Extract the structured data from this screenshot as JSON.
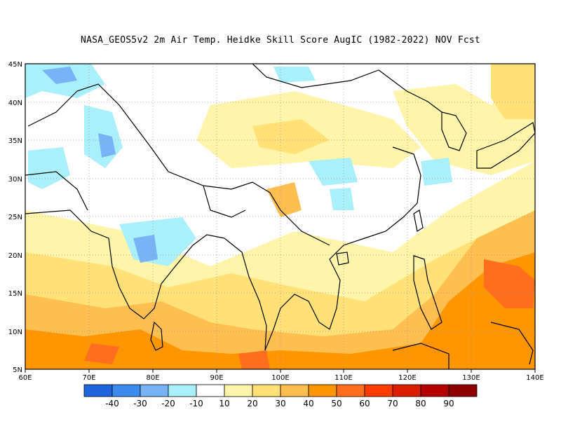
{
  "title": "NASA_GEOS5v2  2m Air Temp. Heidke Skill Score AugIC (1982-2022) NOV Fcst",
  "map": {
    "lon_range": [
      60,
      140
    ],
    "lat_range": [
      5,
      45
    ],
    "lon_labels": [
      "60E",
      "70E",
      "80E",
      "90E",
      "100E",
      "110E",
      "120E",
      "130E",
      "140E"
    ],
    "lat_labels": [
      "5N",
      "10N",
      "15N",
      "20N",
      "25N",
      "30N",
      "35N",
      "40N",
      "45N"
    ],
    "grid": "dotted"
  },
  "colorbar": {
    "colors": [
      "#1e64dc",
      "#3c8cf0",
      "#78b4f5",
      "#aaf0fa",
      "#ffffff",
      "#fff5aa",
      "#ffe178",
      "#ffbe50",
      "#ff9600",
      "#ff6e1e",
      "#ff3c00",
      "#dc1e00",
      "#b40000",
      "#8c0000"
    ],
    "labels": [
      "-40",
      "-30",
      "-20",
      "-10",
      "10",
      "20",
      "30",
      "40",
      "50",
      "60",
      "70",
      "80",
      "90"
    ]
  }
}
